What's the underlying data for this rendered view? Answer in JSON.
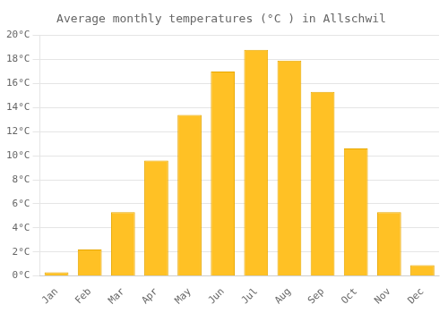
{
  "chart_data": {
    "type": "bar",
    "title": "Average monthly temperatures (°C ) in Allschwil",
    "categories": [
      "Jan",
      "Feb",
      "Mar",
      "Apr",
      "May",
      "Jun",
      "Jul",
      "Aug",
      "Sep",
      "Oct",
      "Nov",
      "Dec"
    ],
    "values": [
      0.3,
      2.2,
      5.3,
      9.6,
      13.4,
      17.0,
      18.8,
      17.9,
      15.3,
      10.6,
      5.3,
      0.9
    ],
    "color": "#FFC125",
    "ylim": [
      0,
      20
    ],
    "yticks": [
      {
        "value": 0,
        "label": "0°C"
      },
      {
        "value": 2,
        "label": "2°C"
      },
      {
        "value": 4,
        "label": "4°C"
      },
      {
        "value": 6,
        "label": "6°C"
      },
      {
        "value": 8,
        "label": "8°C"
      },
      {
        "value": 10,
        "label": "10°C"
      },
      {
        "value": 12,
        "label": "12°C"
      },
      {
        "value": 14,
        "label": "14°C"
      },
      {
        "value": 16,
        "label": "16°C"
      },
      {
        "value": 18,
        "label": "18°C"
      },
      {
        "value": 20,
        "label": "20°C"
      }
    ],
    "grid": true
  }
}
